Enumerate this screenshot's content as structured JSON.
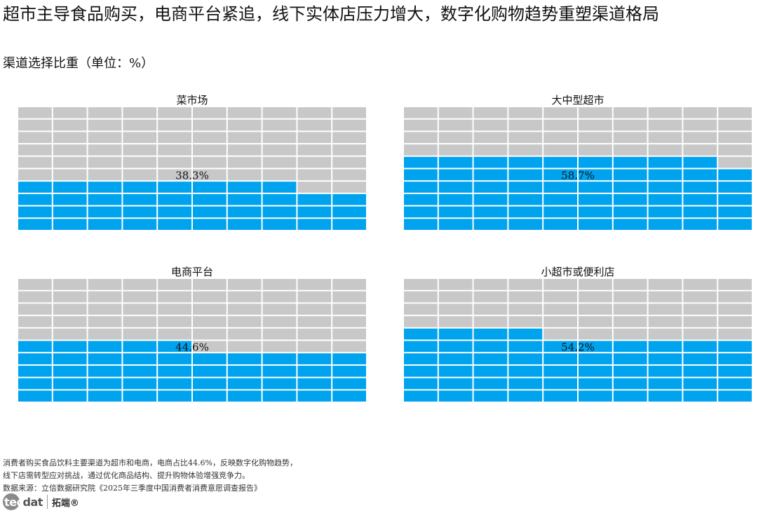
{
  "title": "超市主导食品购买，电商平台紧追，线下实体店压力增大，数字化购物趋势重塑渠道格局",
  "subtitle": "渠道选择比重（单位：%）",
  "chart_data": [
    {
      "type": "waffle",
      "title": "菜市场",
      "value": 38.3,
      "label": "38.3%",
      "grid": [
        10,
        10
      ]
    },
    {
      "type": "waffle",
      "title": "大中型超市",
      "value": 58.7,
      "label": "58.7%",
      "grid": [
        10,
        10
      ]
    },
    {
      "type": "waffle",
      "title": "电商平台",
      "value": 44.6,
      "label": "44.6%",
      "grid": [
        10,
        10
      ]
    },
    {
      "type": "waffle",
      "title": "小超市或便利店",
      "value": 54.2,
      "label": "54.2%",
      "grid": [
        10,
        10
      ]
    }
  ],
  "colors": {
    "filled": "#00a3ee",
    "empty": "#c8c8c8"
  },
  "footer": {
    "line1": "消费者购买食品饮料主要渠道为超市和电商，电商占比44.6%，反映数字化购物趋势，",
    "line2": "线下店需转型应对挑战，通过优化商品结构、提升购物体验增强竞争力。",
    "source": "数据来源：立信数据研究院《2025年三季度中国消费者消费意愿调查报告》"
  },
  "logo": {
    "text_a": "tec",
    "text_b": "dat",
    "cn": "拓端®"
  }
}
